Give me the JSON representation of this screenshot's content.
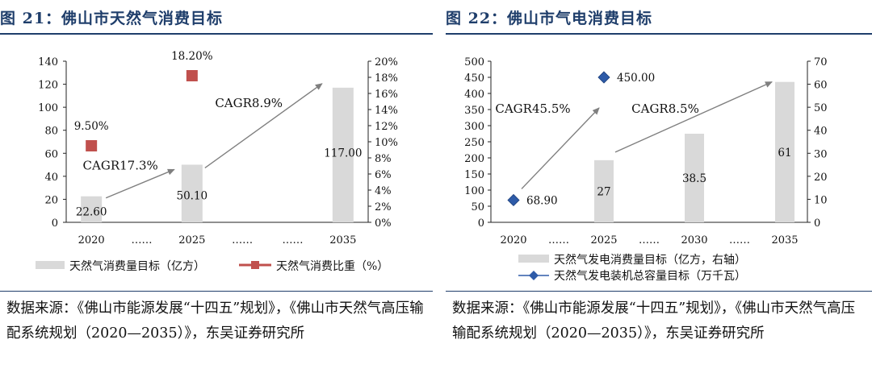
{
  "left": {
    "title": "图 21：佛山市天然气消费目标",
    "source": "数据来源：《佛山市能源发展“十四五”规划》，《佛山市天然气高压输配系统规划（2020—2035）》，东吴证券研究所"
  },
  "right": {
    "title": "图 22：佛山市气电消费目标",
    "source": "数据来源：《佛山市能源发展“十四五”规划》，《佛山市天然气高压输配系统规划（2020—2035）》，东吴证券研究所"
  },
  "chart_data": [
    {
      "type": "bar+scatter",
      "title": "佛山市天然气消费目标",
      "categories": [
        "2020",
        "……",
        "2025",
        "……",
        "……",
        "2035"
      ],
      "y_left_ticks": [
        "0",
        "20",
        "40",
        "60",
        "80",
        "100",
        "120",
        "140"
      ],
      "y_right_ticks": [
        "0%",
        "2%",
        "4%",
        "6%",
        "8%",
        "10%",
        "12%",
        "14%",
        "16%",
        "18%",
        "20%"
      ],
      "ylim_left": [
        0,
        140
      ],
      "ylim_right": [
        0,
        0.2
      ],
      "series": [
        {
          "name": "天然气消费量目标（亿方）",
          "kind": "bar",
          "axis": "left",
          "color": "#d9d9d9",
          "points": [
            {
              "category": "2020",
              "value": 22.6
            },
            {
              "category": "2025",
              "value": 50.1
            },
            {
              "category": "2035",
              "value": 117.0
            }
          ],
          "labels": [
            "22.60",
            "50.10",
            "117.00"
          ]
        },
        {
          "name": "天然气消费比重（%）",
          "kind": "marker",
          "axis": "right",
          "color": "#c0504d",
          "points": [
            {
              "category": "2020",
              "value": 0.095
            },
            {
              "category": "2025",
              "value": 0.182
            }
          ],
          "labels": [
            "9.50%",
            "18.20%"
          ]
        }
      ],
      "annotations": [
        "CAGR17.3%",
        "CAGR8.9%"
      ],
      "legend": [
        "天然气消费量目标（亿方）",
        "天然气消费比重（%）"
      ]
    },
    {
      "type": "bar+line",
      "title": "佛山市气电消费目标",
      "categories": [
        "2020",
        "……",
        "2025",
        "……",
        "2030",
        "……",
        "2035"
      ],
      "y_left_ticks": [
        "0",
        "50",
        "100",
        "150",
        "200",
        "250",
        "300",
        "350",
        "400",
        "450",
        "500"
      ],
      "y_right_ticks": [
        "0",
        "10",
        "20",
        "30",
        "40",
        "50",
        "60",
        "70"
      ],
      "ylim_left": [
        0,
        500
      ],
      "ylim_right": [
        0,
        70
      ],
      "series": [
        {
          "name": "天然气发电消费量目标（亿方，右轴）",
          "kind": "bar",
          "axis": "right",
          "color": "#d9d9d9",
          "points": [
            {
              "category": "2025",
              "value": 27
            },
            {
              "category": "2030",
              "value": 38.5
            },
            {
              "category": "2035",
              "value": 61
            }
          ],
          "labels": [
            "27",
            "38.5",
            "61"
          ]
        },
        {
          "name": "天然气发电装机总容量目标（万千瓦）",
          "kind": "line",
          "axis": "left",
          "color": "#2e5ba8",
          "points": [
            {
              "category": "2020",
              "value": 68.9
            },
            {
              "category": "2025",
              "value": 450.0
            }
          ],
          "labels": [
            "68.90",
            "450.00"
          ]
        }
      ],
      "annotations": [
        "CAGR45.5%",
        "CAGR8.5%"
      ],
      "legend": [
        "天然气发电消费量目标（亿方，右轴）",
        "天然气发电装机总容量目标（万千瓦）"
      ]
    }
  ],
  "colors": {
    "accent": "#1f3e6b",
    "bar": "#d9d9d9",
    "marker": "#c0504d",
    "line": "#2e5ba8",
    "arrow": "#7f7f7f"
  }
}
